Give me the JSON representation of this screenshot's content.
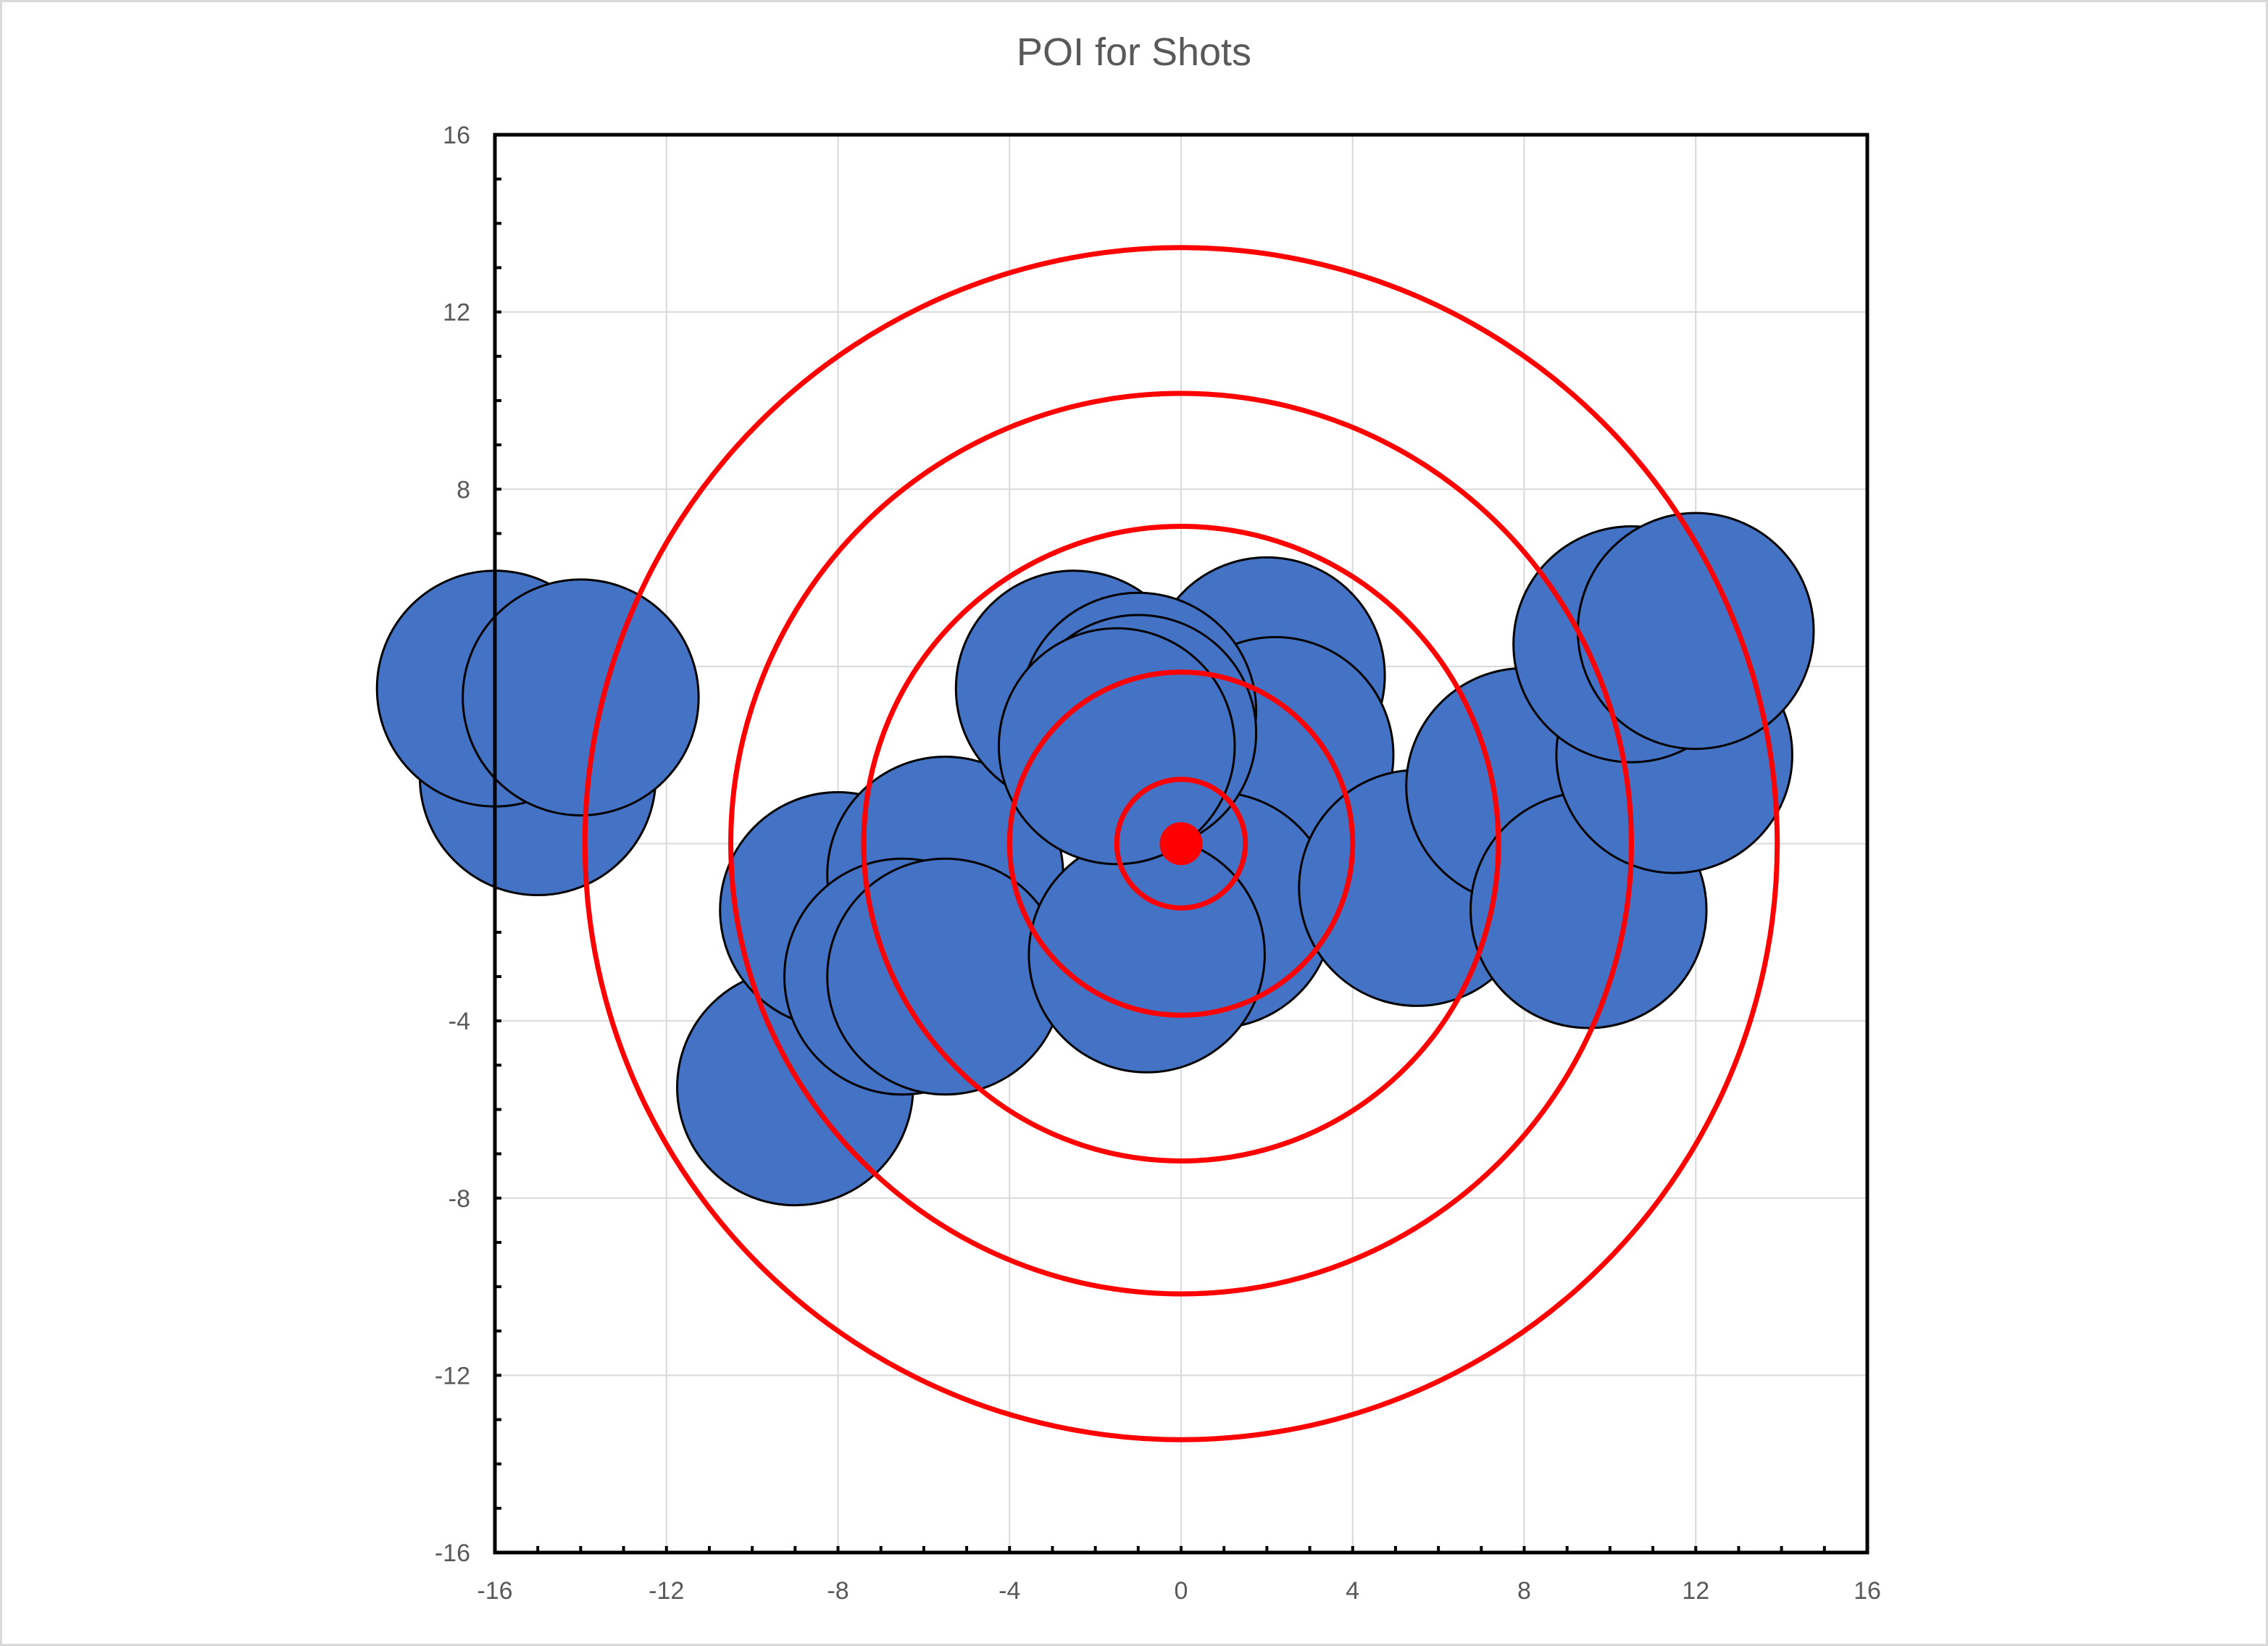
{
  "chart_data": {
    "type": "scatter",
    "title": "POI for Shots",
    "xlabel": "",
    "ylabel": "",
    "xlim": [
      -16,
      16
    ],
    "ylim": [
      -16,
      16
    ],
    "x_ticks": [
      -16,
      -12,
      -8,
      -4,
      0,
      4,
      8,
      12,
      16
    ],
    "y_ticks": [
      -16,
      -12,
      -8,
      -4,
      0,
      4,
      8,
      12,
      16
    ],
    "grid": true,
    "legend": "none",
    "colors": {
      "shot_fill": "#4472c4",
      "shot_edge": "#000000",
      "ring": "#ff0000",
      "center_dot": "#ff0000",
      "grid": "#d9d9d9",
      "axis": "#000000",
      "tick_text": "#595959"
    },
    "shot_radius": 2.75,
    "shots": [
      {
        "x": -15.0,
        "y": 1.5
      },
      {
        "x": -16.0,
        "y": 3.5
      },
      {
        "x": -14.0,
        "y": 3.3
      },
      {
        "x": -9.0,
        "y": -5.5
      },
      {
        "x": -8.0,
        "y": -1.5
      },
      {
        "x": -5.5,
        "y": -0.7
      },
      {
        "x": -6.5,
        "y": -3.0
      },
      {
        "x": -5.5,
        "y": -3.0
      },
      {
        "x": -2.5,
        "y": 3.5
      },
      {
        "x": 2.0,
        "y": 3.8
      },
      {
        "x": 2.2,
        "y": 2.0
      },
      {
        "x": 0.8,
        "y": -1.5
      },
      {
        "x": -0.8,
        "y": -2.5
      },
      {
        "x": -1.0,
        "y": 3.0
      },
      {
        "x": -1.0,
        "y": 2.5
      },
      {
        "x": -1.5,
        "y": 2.2
      },
      {
        "x": 5.5,
        "y": -1.0
      },
      {
        "x": 8.0,
        "y": 1.3
      },
      {
        "x": 9.5,
        "y": -1.5
      },
      {
        "x": 11.5,
        "y": 2.0
      },
      {
        "x": 10.5,
        "y": 4.5
      },
      {
        "x": 12.0,
        "y": 4.8
      }
    ],
    "rings": [
      1.5,
      4.0,
      7.4,
      10.5,
      13.9
    ],
    "center_dot_radius": 0.5,
    "center": {
      "x": 0,
      "y": 0
    }
  }
}
